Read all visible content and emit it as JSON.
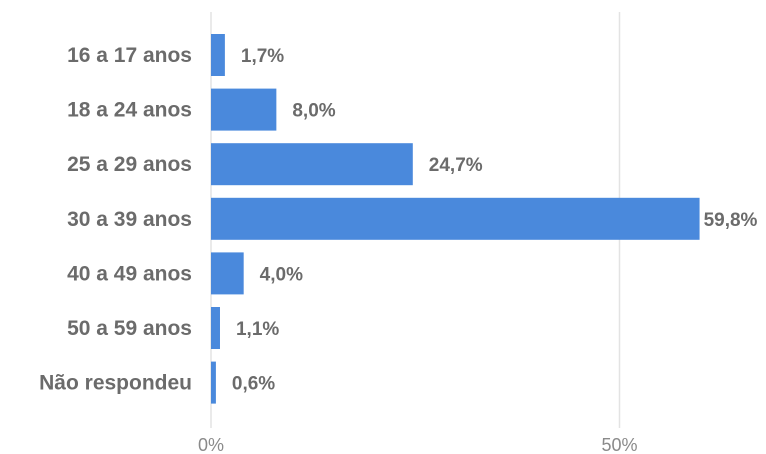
{
  "chart_data": {
    "type": "bar",
    "orientation": "horizontal",
    "categories": [
      "16 a 17 anos",
      "18 a 24 anos",
      "25 a 29 anos",
      "30 a 39 anos",
      "40 a 49 anos",
      "50 a 59 anos",
      "Não respondeu"
    ],
    "values": [
      1.7,
      8.0,
      24.7,
      59.8,
      4.0,
      1.1,
      0.6
    ],
    "value_labels": [
      "1,7%",
      "8,0%",
      "24,7%",
      "59,8%",
      "4,0%",
      "1,1%",
      "0,6%"
    ],
    "x_ticks": [
      0,
      50
    ],
    "x_tick_labels": [
      "0%",
      "50%"
    ],
    "xlim": [
      0,
      60
    ],
    "grid": true,
    "bar_color": "#4a89dc",
    "title": "",
    "xlabel": "",
    "ylabel": ""
  }
}
